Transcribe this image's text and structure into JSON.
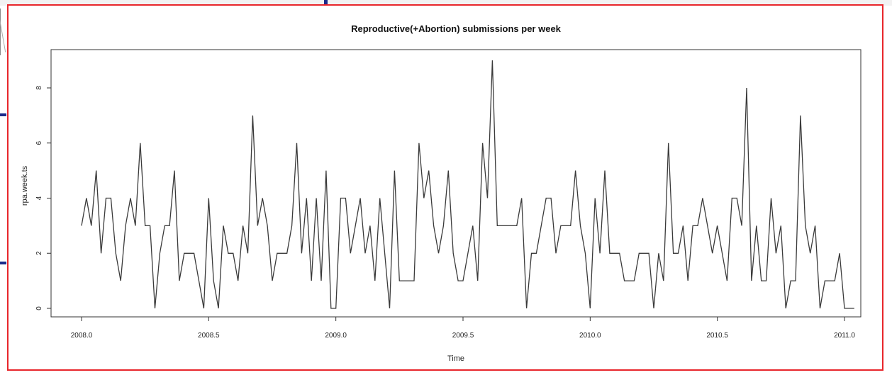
{
  "chart_data": {
    "type": "line",
    "title": "Reproductive(+Abortion) submissions per week",
    "xlabel": "Time",
    "ylabel": "rpa.week.ts",
    "xlim": [
      2008.0,
      2011.0
    ],
    "ylim": [
      0,
      9
    ],
    "x_ticks": [
      "2008.0",
      "2008.5",
      "2009.0",
      "2009.5",
      "2010.0",
      "2010.5",
      "2011.0"
    ],
    "y_ticks": [
      "0",
      "2",
      "4",
      "6",
      "8"
    ],
    "grid": false,
    "series": [
      {
        "x_start": 2008.0,
        "x_step": 0.01923,
        "values": [
          3,
          4,
          3,
          5,
          2,
          4,
          4,
          2,
          1,
          3,
          4,
          3,
          6,
          3,
          3,
          0,
          2,
          3,
          3,
          5,
          1,
          2,
          2,
          2,
          1,
          0,
          4,
          1,
          0,
          3,
          2,
          2,
          1,
          3,
          2,
          7,
          3,
          4,
          3,
          1,
          2,
          2,
          2,
          3,
          6,
          2,
          4,
          1,
          4,
          1,
          5,
          0,
          0,
          4,
          4,
          2,
          3,
          4,
          2,
          3,
          1,
          4,
          2,
          0,
          5,
          1,
          1,
          1,
          1,
          6,
          4,
          5,
          3,
          2,
          3,
          5,
          2,
          1,
          1,
          2,
          3,
          1,
          6,
          4,
          9,
          3,
          3,
          3,
          3,
          3,
          4,
          0,
          2,
          2,
          3,
          4,
          4,
          2,
          3,
          3,
          3,
          5,
          3,
          2,
          0,
          4,
          2,
          5,
          2,
          2,
          2,
          1,
          1,
          1,
          2,
          2,
          2,
          0,
          2,
          1,
          6,
          2,
          2,
          3,
          1,
          3,
          3,
          4,
          3,
          2,
          3,
          2,
          1,
          4,
          4,
          3,
          8,
          1,
          3,
          1,
          1,
          4,
          2,
          3,
          0,
          1,
          1,
          7,
          3,
          2,
          3,
          0,
          1,
          1,
          1,
          2,
          0,
          0,
          0
        ]
      }
    ],
    "colors": {
      "line": "#3a3a3a",
      "frame_border": "#e8262b",
      "axis": "#333333"
    }
  }
}
